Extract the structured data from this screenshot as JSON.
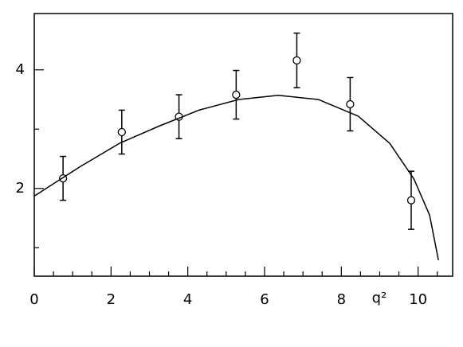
{
  "chart_data": {
    "type": "scatter",
    "xlabel": "q²",
    "xlim": [
      0,
      10.9
    ],
    "ylim": [
      0.52,
      4.95
    ],
    "xticks": [
      0,
      2,
      4,
      6,
      8,
      10
    ],
    "yticks": [
      2,
      4
    ],
    "xminor_ticks": [
      0.5,
      1,
      1.5,
      2.5,
      3,
      3.5,
      4.5,
      5,
      5.5,
      6.5,
      7,
      7.5,
      8.5,
      9,
      9.5,
      10.5
    ],
    "yminor_ticks": [
      1,
      3
    ],
    "series": [
      {
        "type": "scatter",
        "color": "#000000",
        "x": [
          0.75,
          2.28,
          3.77,
          5.26,
          6.84,
          8.23,
          9.82
        ],
        "values": [
          2.17,
          2.95,
          3.21,
          3.58,
          4.16,
          3.42,
          1.8
        ],
        "errors": [
          0.37,
          0.37,
          0.37,
          0.41,
          0.46,
          0.45,
          0.49
        ]
      },
      {
        "type": "line",
        "color": "#000000",
        "x": [
          0,
          1.18,
          2.22,
          3.25,
          4.29,
          5.33,
          6.36,
          7.4,
          8.44,
          9.26,
          9.89,
          10.3,
          10.53
        ],
        "values": [
          1.87,
          2.36,
          2.76,
          3.05,
          3.32,
          3.5,
          3.57,
          3.5,
          3.22,
          2.76,
          2.16,
          1.55,
          0.79
        ]
      }
    ]
  }
}
